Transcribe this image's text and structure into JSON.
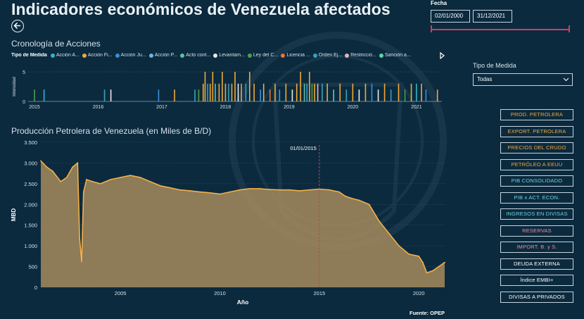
{
  "header": {
    "title": "Indicadores económicos de Venezuela afectados"
  },
  "date_filter": {
    "label": "Fecha",
    "start": "02/01/2000",
    "end": "31/12/2021"
  },
  "timeline": {
    "title": "Cronología de Acciones",
    "legend_title": "Tipo de Medida",
    "legend": [
      {
        "label": "Acción A...",
        "color": "#2fb7c8"
      },
      {
        "label": "Acción Fi...",
        "color": "#f0a93a"
      },
      {
        "label": "Acción Ju...",
        "color": "#3a8fd8"
      },
      {
        "label": "Acción P...",
        "color": "#6db3e8"
      },
      {
        "label": "Acto cont...",
        "color": "#5fbfa8"
      },
      {
        "label": "Levantam...",
        "color": "#e8e8e8"
      },
      {
        "label": "Ley del C...",
        "color": "#4fa04a"
      },
      {
        "label": "Licencia ...",
        "color": "#e8743a"
      },
      {
        "label": "Orden Ej...",
        "color": "#3aa0b8"
      },
      {
        "label": "Restricció...",
        "color": "#e8b0b8"
      },
      {
        "label": "Sanción a...",
        "color": "#5fd0b0"
      }
    ],
    "y_label": "Intensidad",
    "y_ticks": [
      "5",
      "0"
    ],
    "x_ticks": [
      "2015",
      "2016",
      "2017",
      "2018",
      "2019",
      "2020",
      "2021"
    ]
  },
  "tipo_medida": {
    "label": "Tipo de Medida",
    "selected": "Todas"
  },
  "buttons": [
    {
      "label": "PROD. PETROLERA",
      "color": "#f0a93a"
    },
    {
      "label": "EXPORT. PETROLERA",
      "color": "#f0a93a"
    },
    {
      "label": "PRECIOS DEL CRUDO",
      "color": "#f0a93a"
    },
    {
      "label": "PETRÓLEO A EEUU",
      "color": "#f0a93a"
    },
    {
      "label": "PIB CONSOLIDADO",
      "color": "#6fd2d8"
    },
    {
      "label": "PIB x ACT. ECON.",
      "color": "#6fd2d8"
    },
    {
      "label": "INGRESOS EN DIVISAS",
      "color": "#6fd2d8"
    },
    {
      "label": "RESERVAS",
      "color": "#f08aa0"
    },
    {
      "label": "IMPORT. B. y S.",
      "color": "#f08aa0"
    },
    {
      "label": "DEUDA EXTERNA",
      "color": "#ffffff"
    },
    {
      "label": "Índice EMBI+",
      "color": "#ffffff"
    },
    {
      "label": "DIVISAS A PRIVADOS",
      "color": "#ffffff"
    }
  ],
  "source": "Fuente: OPEP",
  "chart_data": [
    {
      "type": "bar",
      "title": "Cronología de Acciones",
      "ylabel": "Intensidad",
      "ylim": [
        0,
        5
      ],
      "xlim": [
        2014.9,
        2021.4
      ],
      "x_ticks": [
        2015,
        2016,
        2017,
        2018,
        2019,
        2020,
        2021
      ],
      "bars": [
        {
          "x": 2015.0,
          "v": 2,
          "c": "#4fa04a"
        },
        {
          "x": 2015.15,
          "v": 2,
          "c": "#2fb7c8"
        },
        {
          "x": 2016.1,
          "v": 2,
          "c": "#3aa0b8"
        },
        {
          "x": 2016.2,
          "v": 2,
          "c": "#e8e8e8"
        },
        {
          "x": 2016.95,
          "v": 2,
          "c": "#3a8fd8"
        },
        {
          "x": 2017.2,
          "v": 2,
          "c": "#f0a93a"
        },
        {
          "x": 2017.52,
          "v": 2,
          "c": "#3aa0b8"
        },
        {
          "x": 2017.58,
          "v": 2,
          "c": "#4fa04a"
        },
        {
          "x": 2017.65,
          "v": 3,
          "c": "#f0a93a"
        },
        {
          "x": 2017.68,
          "v": 5,
          "c": "#f0a93a"
        },
        {
          "x": 2017.72,
          "v": 3,
          "c": "#3aa0b8"
        },
        {
          "x": 2017.76,
          "v": 3,
          "c": "#f0a93a"
        },
        {
          "x": 2017.8,
          "v": 5,
          "c": "#f0a93a"
        },
        {
          "x": 2017.84,
          "v": 3,
          "c": "#5fbfa8"
        },
        {
          "x": 2017.9,
          "v": 3,
          "c": "#f0a93a"
        },
        {
          "x": 2017.95,
          "v": 5,
          "c": "#f0a93a"
        },
        {
          "x": 2018.0,
          "v": 3,
          "c": "#f0a93a"
        },
        {
          "x": 2018.05,
          "v": 3,
          "c": "#3aa0b8"
        },
        {
          "x": 2018.1,
          "v": 3,
          "c": "#f0a93a"
        },
        {
          "x": 2018.15,
          "v": 5,
          "c": "#f0a93a"
        },
        {
          "x": 2018.2,
          "v": 3,
          "c": "#e8e8e8"
        },
        {
          "x": 2018.25,
          "v": 3,
          "c": "#f0a93a"
        },
        {
          "x": 2018.32,
          "v": 3,
          "c": "#3aa0b8"
        },
        {
          "x": 2018.38,
          "v": 5,
          "c": "#f0a93a"
        },
        {
          "x": 2018.45,
          "v": 3,
          "c": "#f0a93a"
        },
        {
          "x": 2018.55,
          "v": 2,
          "c": "#3a8fd8"
        },
        {
          "x": 2018.6,
          "v": 3,
          "c": "#f0a93a"
        },
        {
          "x": 2018.7,
          "v": 2,
          "c": "#e8743a"
        },
        {
          "x": 2018.78,
          "v": 3,
          "c": "#f0a93a"
        },
        {
          "x": 2018.85,
          "v": 2,
          "c": "#3aa0b8"
        },
        {
          "x": 2018.95,
          "v": 3,
          "c": "#f0a93a"
        },
        {
          "x": 2019.05,
          "v": 2,
          "c": "#e8e8e8"
        },
        {
          "x": 2019.12,
          "v": 3,
          "c": "#f0a93a"
        },
        {
          "x": 2019.18,
          "v": 5,
          "c": "#f0a93a"
        },
        {
          "x": 2019.24,
          "v": 3,
          "c": "#5fbfa8"
        },
        {
          "x": 2019.28,
          "v": 3,
          "c": "#3aa0b8"
        },
        {
          "x": 2019.32,
          "v": 5,
          "c": "#f0a93a"
        },
        {
          "x": 2019.36,
          "v": 3,
          "c": "#4fa04a"
        },
        {
          "x": 2019.4,
          "v": 3,
          "c": "#f0a93a"
        },
        {
          "x": 2019.45,
          "v": 3,
          "c": "#e8b0b8"
        },
        {
          "x": 2019.52,
          "v": 3,
          "c": "#3aa0b8"
        },
        {
          "x": 2019.6,
          "v": 3,
          "c": "#f0a93a"
        },
        {
          "x": 2019.7,
          "v": 2,
          "c": "#5fd0b0"
        },
        {
          "x": 2019.8,
          "v": 3,
          "c": "#f0a93a"
        },
        {
          "x": 2019.9,
          "v": 2,
          "c": "#3aa0b8"
        },
        {
          "x": 2020.0,
          "v": 3,
          "c": "#f0a93a"
        },
        {
          "x": 2020.1,
          "v": 2,
          "c": "#e8e8e8"
        },
        {
          "x": 2020.2,
          "v": 3,
          "c": "#f0a93a"
        },
        {
          "x": 2020.3,
          "v": 3,
          "c": "#3a8fd8"
        },
        {
          "x": 2020.4,
          "v": 2,
          "c": "#e8e8e8"
        },
        {
          "x": 2020.5,
          "v": 3,
          "c": "#f0a93a"
        },
        {
          "x": 2020.6,
          "v": 2,
          "c": "#3aa0b8"
        },
        {
          "x": 2020.72,
          "v": 3,
          "c": "#f0a93a"
        },
        {
          "x": 2020.82,
          "v": 2,
          "c": "#4fa04a"
        },
        {
          "x": 2020.92,
          "v": 3,
          "c": "#f0a93a"
        },
        {
          "x": 2021.0,
          "v": 3,
          "c": "#2fb7c8"
        },
        {
          "x": 2021.08,
          "v": 3,
          "c": "#f0a93a"
        },
        {
          "x": 2021.15,
          "v": 2,
          "c": "#3a8fd8"
        },
        {
          "x": 2021.33,
          "v": 2,
          "c": "#f0a93a"
        }
      ]
    },
    {
      "type": "area",
      "title": "Producción Petrolera de Venezuela (en Miles de B/D)",
      "xlabel": "Año",
      "ylabel": "MBD",
      "ylim": [
        0,
        3500
      ],
      "xlim": [
        2001,
        2021.3
      ],
      "y_ticks": [
        0,
        500,
        1000,
        1500,
        2000,
        2500,
        3000,
        3500
      ],
      "y_tick_labels": [
        "0",
        "500",
        "1.000",
        "1.500",
        "2.000",
        "2.500",
        "3.000",
        "3.500"
      ],
      "x_ticks": [
        2005,
        2010,
        2015,
        2020
      ],
      "reference_line": {
        "x": 2015.0,
        "label": "01/01/2015"
      },
      "series": [
        {
          "x": [
            2001.0,
            2001.3,
            2001.6,
            2002.0,
            2002.3,
            2002.6,
            2002.85,
            2002.95,
            2003.05,
            2003.15,
            2003.3,
            2003.6,
            2004.0,
            2004.5,
            2005.0,
            2005.5,
            2006.0,
            2006.5,
            2007.0,
            2007.5,
            2008.0,
            2008.5,
            2009.0,
            2009.5,
            2010.0,
            2010.5,
            2011.0,
            2011.5,
            2012.0,
            2012.5,
            2013.0,
            2013.5,
            2014.0,
            2014.5,
            2015.0,
            2015.5,
            2016.0,
            2016.3,
            2016.6,
            2017.0,
            2017.5,
            2018.0,
            2018.5,
            2019.0,
            2019.5,
            2020.0,
            2020.2,
            2020.4,
            2020.7,
            2021.0,
            2021.3
          ],
          "y": [
            3050,
            2900,
            2800,
            2550,
            2650,
            2900,
            3000,
            1200,
            620,
            2300,
            2600,
            2550,
            2500,
            2600,
            2650,
            2700,
            2650,
            2550,
            2450,
            2400,
            2350,
            2330,
            2300,
            2280,
            2250,
            2300,
            2350,
            2380,
            2380,
            2360,
            2350,
            2350,
            2330,
            2350,
            2370,
            2350,
            2300,
            2200,
            2150,
            2100,
            2000,
            1600,
            1300,
            1000,
            800,
            750,
            600,
            350,
            400,
            500,
            600
          ]
        }
      ]
    }
  ]
}
